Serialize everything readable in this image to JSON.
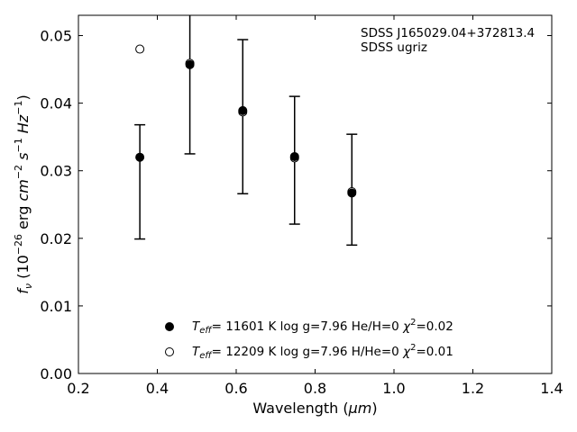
{
  "chart_data": {
    "type": "scatter",
    "xlabel_prefix": "Wavelength (",
    "xlabel_unit": "μm",
    "xlabel_suffix": ")",
    "ylabel": "f_ν (10^-26 erg cm^-2 s^-1 Hz^-1)",
    "xlim": [
      0.2,
      1.4
    ],
    "ylim": [
      0.0,
      0.053
    ],
    "xticks": [
      "0.2",
      "0.4",
      "0.6",
      "0.8",
      "1.0",
      "1.2",
      "1.4"
    ],
    "yticks": [
      "0.00",
      "0.01",
      "0.02",
      "0.03",
      "0.04",
      "0.05"
    ],
    "annotation": [
      "SDSS J165029.04+372813.4",
      "SDSS ugriz"
    ],
    "observed": {
      "name": "SDSS ugriz",
      "points": [
        {
          "x": 0.3557,
          "y": 0.032,
          "ylo": 0.0199,
          "yhi": 0.0368
        },
        {
          "x": 0.4825,
          "y": 0.0456,
          "ylo": 0.0325,
          "yhi": 0.053
        },
        {
          "x": 0.6166,
          "y": 0.0386,
          "ylo": 0.0266,
          "yhi": 0.0494
        },
        {
          "x": 0.748,
          "y": 0.0318,
          "ylo": 0.0221,
          "yhi": 0.041
        },
        {
          "x": 0.8932,
          "y": 0.0266,
          "ylo": 0.019,
          "yhi": 0.0354
        }
      ]
    },
    "series": [
      {
        "name": "Teff= 11601 K  log g=7.96  He/H=0  χ2=0.02",
        "label": {
          "teff": "= 11601 K  log g=7.96  He/H=0  ",
          "chi": "=0.02"
        },
        "marker": "filled",
        "x": [
          0.3557,
          0.4825,
          0.6166,
          0.748,
          0.8932
        ],
        "y": [
          0.032,
          0.0457,
          0.0389,
          0.0321,
          0.0267
        ]
      },
      {
        "name": "Teff= 12209 K  log g=7.96  H/He=0  χ2=0.01",
        "label": {
          "teff": "= 12209 K  log g=7.96  H/He=0  ",
          "chi": "=0.01"
        },
        "marker": "open",
        "x": [
          0.3557,
          0.4825,
          0.6166,
          0.748,
          0.8932
        ],
        "y": [
          0.048,
          0.0459,
          0.0387,
          0.0319,
          0.0269
        ]
      }
    ],
    "grid": false,
    "legend_position": "bottom-center"
  }
}
